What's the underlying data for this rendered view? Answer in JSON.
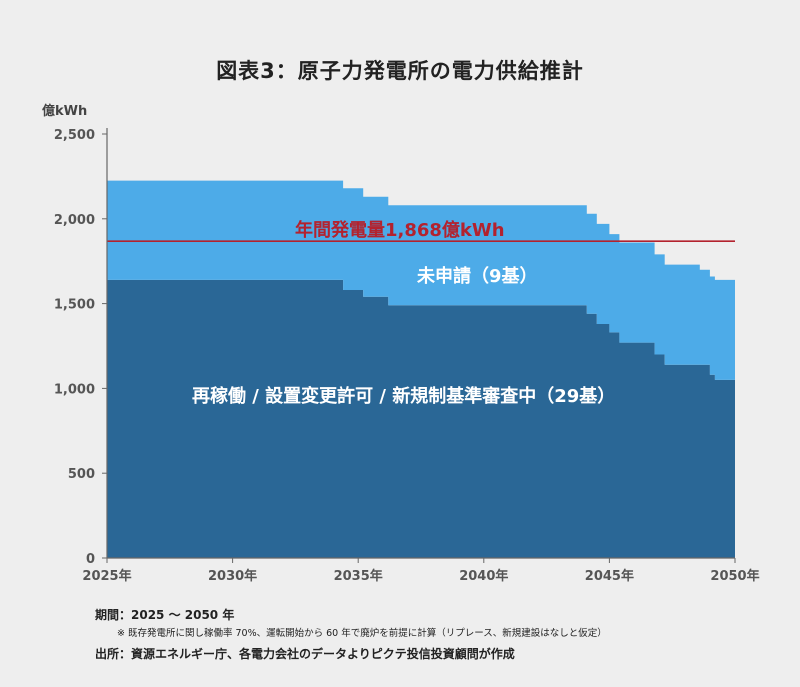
{
  "title": "図表3：原子力発電所の電力供給推計",
  "footer": {
    "period": "期間：2025 〜 2050 年",
    "note": "※ 既存発電所に関し稼働率 70%、運転開始から 60 年で廃炉を前提に計算（リプレース、新規建設はなしと仮定）",
    "source": "出所：資源エネルギー庁、各電力会社のデータよりピクテ投信投資顧問が作成"
  },
  "colors": {
    "operating": "#2a6796",
    "unapplied": "#4dabe8",
    "reference_line": "#b3222e",
    "axis": "#666666"
  },
  "chart_data": {
    "type": "area",
    "stacked": true,
    "step": true,
    "ylabel": "億kWh",
    "ylim": [
      0,
      2500
    ],
    "yticks": [
      "0",
      "500",
      "1,000",
      "1,500",
      "2,000",
      "2,500"
    ],
    "ytick_values": [
      0,
      500,
      1000,
      1500,
      2000,
      2500
    ],
    "xlim": [
      2025,
      2050
    ],
    "xticks": [
      "2025年",
      "2030年",
      "2035年",
      "2040年",
      "2045年",
      "2050年"
    ],
    "xtick_values": [
      2025,
      2030,
      2035,
      2040,
      2045,
      2050
    ],
    "x": [
      2025,
      2034.4,
      2035.2,
      2036.2,
      2044.1,
      2044.5,
      2045.0,
      2045.4,
      2045.8,
      2046.8,
      2047.2,
      2048.6,
      2049.0,
      2049.2
    ],
    "series": [
      {
        "name": "再稼働 / 設置変更許可 / 新規制基準審査中（29基）",
        "key": "operating",
        "values": [
          1640,
          1580,
          1540,
          1490,
          1440,
          1380,
          1330,
          1270,
          1270,
          1200,
          1140,
          1140,
          1080,
          1050
        ]
      },
      {
        "name": "未申請（9基）",
        "key": "unapplied",
        "values": [
          585,
          600,
          590,
          590,
          590,
          590,
          580,
          590,
          590,
          590,
          590,
          560,
          580,
          590
        ]
      }
    ],
    "reference_line": {
      "label": "年間発電量1,868億kWh",
      "value": 1868
    }
  }
}
